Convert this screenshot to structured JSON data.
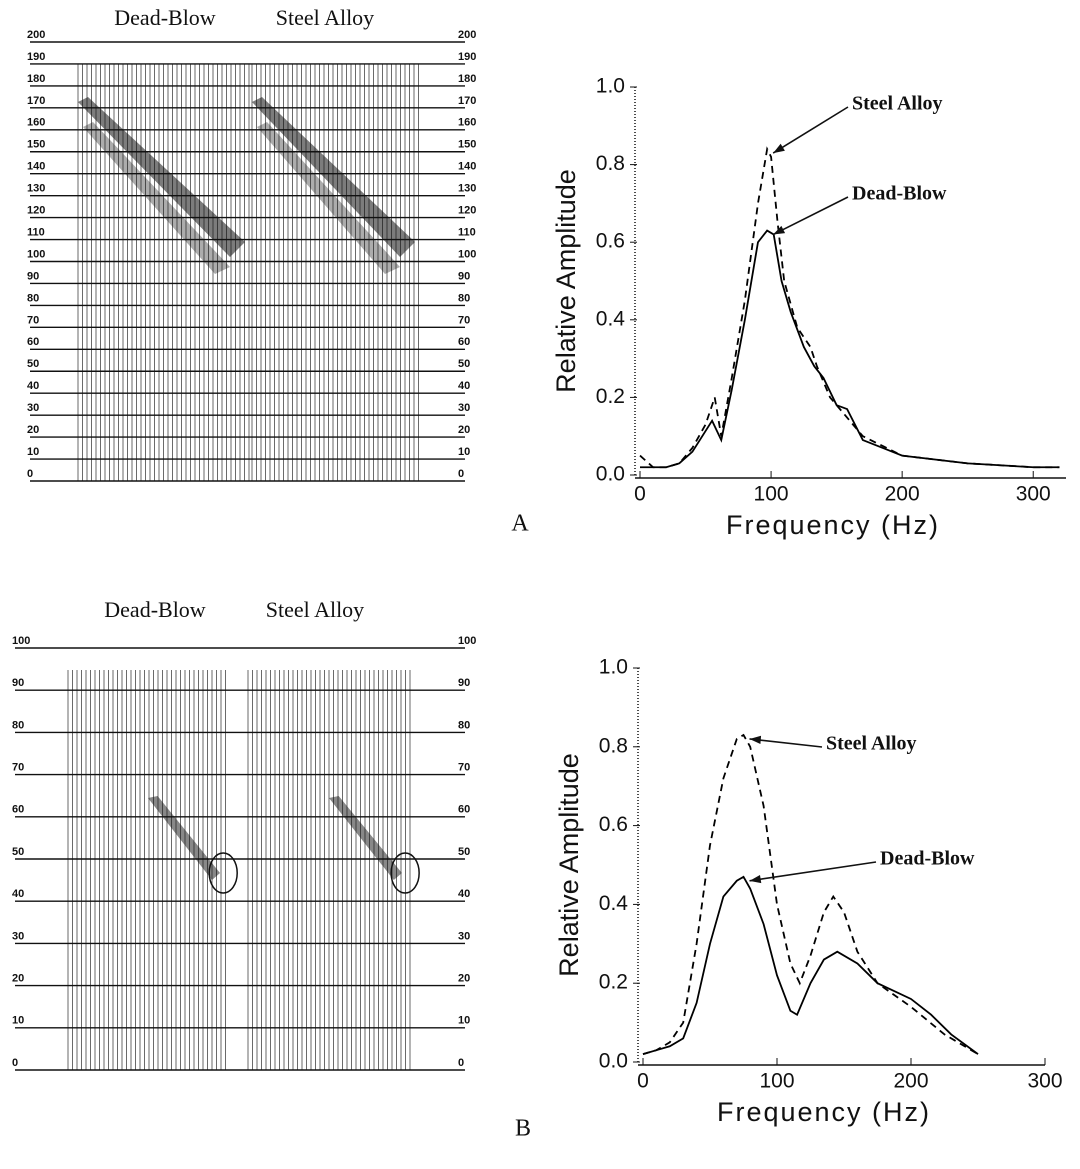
{
  "chart_data": [
    {
      "type": "seismic",
      "columns": [
        "Dead-Blow",
        "Steel Alloy"
      ],
      "ylim": [
        0,
        200
      ],
      "yticks": [
        0,
        10,
        20,
        30,
        40,
        50,
        60,
        70,
        80,
        90,
        100,
        110,
        120,
        130,
        140,
        150,
        160,
        170,
        180,
        190,
        200
      ]
    },
    {
      "type": "line",
      "label": "A",
      "xlabel": "Frequency (Hz)",
      "ylabel": "Relative Amplitude",
      "xlim": [
        0,
        325
      ],
      "xticks": [
        0,
        100,
        200,
        300
      ],
      "ylim": [
        0,
        1
      ],
      "yticks": [
        {
          "value": 0,
          "label": "0.0"
        },
        0.2,
        0.4,
        0.6,
        0.8,
        {
          "value": 1,
          "label": "1.0"
        }
      ],
      "series": [
        {
          "name": "Steel Alloy",
          "color": "#000000",
          "style": "dashed",
          "x": [
            0,
            10,
            20,
            30,
            40,
            50,
            57,
            62,
            70,
            80,
            90,
            97,
            100,
            105,
            110,
            120,
            130,
            135,
            145,
            155,
            170,
            200,
            250,
            300,
            320
          ],
          "values": [
            0.05,
            0.02,
            0.02,
            0.03,
            0.07,
            0.13,
            0.2,
            0.1,
            0.25,
            0.45,
            0.7,
            0.84,
            0.82,
            0.65,
            0.5,
            0.38,
            0.33,
            0.28,
            0.2,
            0.16,
            0.1,
            0.05,
            0.03,
            0.02,
            0.02
          ]
        },
        {
          "name": "Dead-Blow",
          "color": "#000000",
          "style": "solid",
          "x": [
            0,
            20,
            30,
            40,
            55,
            62,
            70,
            80,
            90,
            97,
            102,
            108,
            115,
            125,
            133,
            140,
            150,
            158,
            170,
            200,
            250,
            300,
            320
          ],
          "values": [
            0.02,
            0.02,
            0.03,
            0.06,
            0.14,
            0.09,
            0.22,
            0.4,
            0.6,
            0.63,
            0.62,
            0.5,
            0.42,
            0.33,
            0.28,
            0.25,
            0.18,
            0.17,
            0.09,
            0.05,
            0.03,
            0.02,
            0.02
          ]
        }
      ]
    },
    {
      "type": "seismic",
      "columns": [
        "Dead-Blow",
        "Steel Alloy"
      ],
      "ylim": [
        0,
        100
      ],
      "yticks": [
        0,
        10,
        20,
        30,
        40,
        50,
        60,
        70,
        80,
        90,
        100
      ]
    },
    {
      "type": "line",
      "label": "B",
      "xlabel": "Frequency (Hz)",
      "ylabel": "Relative Amplitude",
      "xlim": [
        0,
        300
      ],
      "xticks": [
        0,
        100,
        200,
        300
      ],
      "ylim": [
        0,
        1
      ],
      "yticks": [
        {
          "value": 0,
          "label": "0.0"
        },
        0.2,
        0.4,
        0.6,
        0.8,
        {
          "value": 1,
          "label": "1.0"
        }
      ],
      "series": [
        {
          "name": "Steel Alloy",
          "color": "#000000",
          "style": "dashed",
          "x": [
            0,
            10,
            20,
            30,
            40,
            50,
            60,
            70,
            75,
            80,
            90,
            100,
            110,
            117,
            125,
            135,
            142,
            150,
            160,
            175,
            200,
            225,
            250
          ],
          "values": [
            0.02,
            0.03,
            0.05,
            0.1,
            0.3,
            0.55,
            0.72,
            0.82,
            0.83,
            0.8,
            0.65,
            0.4,
            0.25,
            0.2,
            0.27,
            0.38,
            0.42,
            0.38,
            0.28,
            0.2,
            0.14,
            0.07,
            0.02
          ]
        },
        {
          "name": "Dead-Blow",
          "color": "#000000",
          "style": "solid",
          "x": [
            0,
            10,
            20,
            30,
            40,
            50,
            60,
            70,
            75,
            80,
            90,
            100,
            110,
            115,
            125,
            135,
            145,
            160,
            175,
            200,
            215,
            230,
            250
          ],
          "values": [
            0.02,
            0.03,
            0.04,
            0.06,
            0.15,
            0.3,
            0.42,
            0.46,
            0.47,
            0.44,
            0.35,
            0.22,
            0.13,
            0.12,
            0.2,
            0.26,
            0.28,
            0.25,
            0.2,
            0.16,
            0.12,
            0.07,
            0.02
          ]
        }
      ]
    }
  ]
}
